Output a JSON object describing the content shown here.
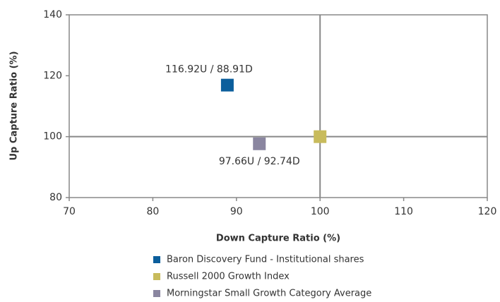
{
  "chart_data": {
    "type": "scatter",
    "xlabel": "Down Capture Ratio (%)",
    "ylabel": "Up Capture Ratio (%)",
    "xlim": [
      70,
      120
    ],
    "xticks": [
      70,
      80,
      90,
      100,
      110,
      120
    ],
    "ylim": [
      80,
      140
    ],
    "yticks": [
      80,
      100,
      120,
      140
    ],
    "xref": 100,
    "yref": 100,
    "series": [
      {
        "name": "Baron Discovery Fund - Institutional shares",
        "color": "#0b5e9c",
        "x": [
          88.91
        ],
        "values": [
          116.92
        ],
        "value_labels": [
          "116.92U / 88.91D"
        ]
      },
      {
        "name": "Russell 2000 Growth Index",
        "color": "#c8bb5c",
        "x": [
          100
        ],
        "values": [
          100
        ]
      },
      {
        "name": "Morningstar Small Growth Category Average",
        "color": "#8a86a0",
        "x": [
          92.74
        ],
        "values": [
          97.66
        ],
        "value_labels": [
          "97.66U / 92.74D"
        ]
      }
    ]
  }
}
